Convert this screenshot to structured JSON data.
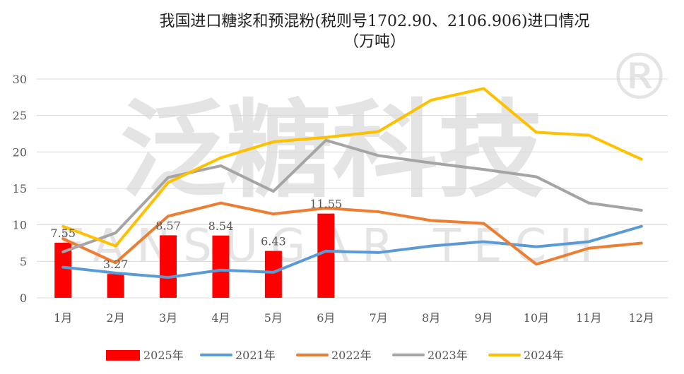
{
  "chart_data": {
    "type": "bar+line",
    "title": "我国进口糖浆和预混粉(税则号1702.90、2106.906)进口情况",
    "subtitle": "（万吨）",
    "categories": [
      "1月",
      "2月",
      "3月",
      "4月",
      "5月",
      "6月",
      "7月",
      "8月",
      "9月",
      "10月",
      "11月",
      "12月"
    ],
    "ylim": [
      0,
      30
    ],
    "yticks": [
      0,
      5,
      10,
      15,
      20,
      25,
      30
    ],
    "grid": true,
    "legend": "bottom",
    "bars": {
      "name": "2025年",
      "color": "#ff0000",
      "values": [
        7.55,
        3.27,
        8.57,
        8.54,
        6.43,
        11.55
      ],
      "labels": [
        "7.55",
        "3.27",
        "8.57",
        "8.54",
        "6.43",
        "11.55"
      ]
    },
    "series": [
      {
        "name": "2021年",
        "color": "#5b9bd5",
        "values": [
          4.2,
          3.4,
          2.8,
          3.8,
          3.5,
          6.4,
          6.2,
          7.1,
          7.7,
          7.0,
          7.7,
          9.8
        ]
      },
      {
        "name": "2022年",
        "color": "#ed7d31",
        "values": [
          8.1,
          4.8,
          11.2,
          13.0,
          11.5,
          12.3,
          11.8,
          10.6,
          10.2,
          4.6,
          6.8,
          7.5
        ]
      },
      {
        "name": "2023年",
        "color": "#a5a5a5",
        "values": [
          6.3,
          8.9,
          16.5,
          18.1,
          14.6,
          21.6,
          19.5,
          18.5,
          17.6,
          16.6,
          13.0,
          12.0
        ]
      },
      {
        "name": "2024年",
        "color": "#ffc000",
        "values": [
          9.8,
          7.1,
          15.8,
          19.2,
          21.4,
          22.0,
          22.8,
          27.1,
          28.7,
          22.7,
          22.3,
          19.0
        ]
      }
    ]
  },
  "watermark": {
    "cn": "泛糖科技",
    "en": "FANSUGAR TECH",
    "mark": "®"
  }
}
